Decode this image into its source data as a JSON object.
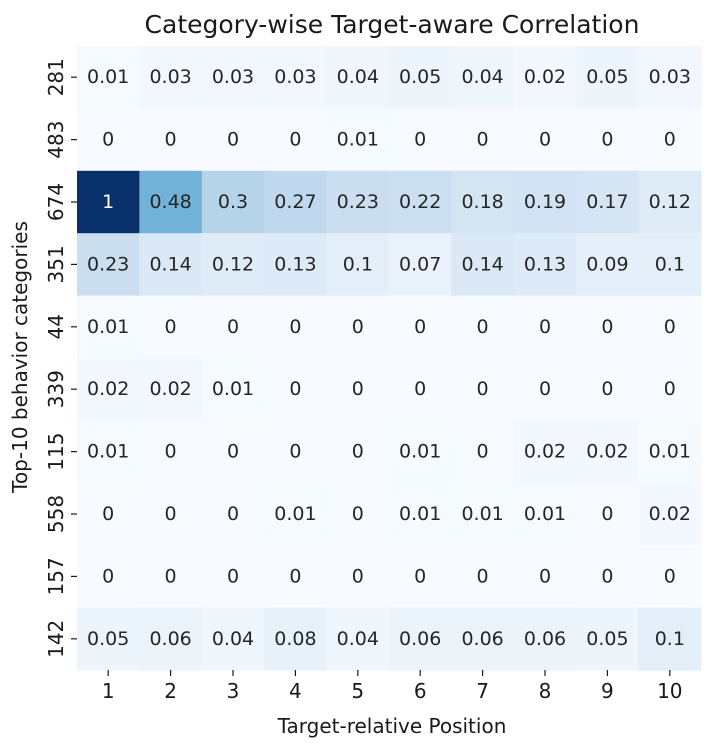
{
  "chart_data": {
    "type": "heatmap",
    "title": "Category-wise Target-aware Correlation",
    "xlabel": "Target-relative Position",
    "ylabel": "Top-10 behavior categories",
    "x_categories": [
      "1",
      "2",
      "3",
      "4",
      "5",
      "6",
      "7",
      "8",
      "9",
      "10"
    ],
    "y_categories": [
      "281",
      "483",
      "674",
      "351",
      "44",
      "339",
      "115",
      "558",
      "157",
      "142"
    ],
    "values": [
      [
        0.01,
        0.03,
        0.03,
        0.03,
        0.04,
        0.05,
        0.04,
        0.02,
        0.05,
        0.03
      ],
      [
        0,
        0,
        0,
        0,
        0.01,
        0,
        0,
        0,
        0,
        0
      ],
      [
        1,
        0.48,
        0.3,
        0.27,
        0.23,
        0.22,
        0.18,
        0.19,
        0.17,
        0.12
      ],
      [
        0.23,
        0.14,
        0.12,
        0.13,
        0.1,
        0.07,
        0.14,
        0.13,
        0.09,
        0.1
      ],
      [
        0.01,
        0,
        0,
        0,
        0,
        0,
        0,
        0,
        0,
        0
      ],
      [
        0.02,
        0.02,
        0.01,
        0,
        0,
        0,
        0,
        0,
        0,
        0
      ],
      [
        0.01,
        0,
        0,
        0,
        0,
        0.01,
        0,
        0.02,
        0.02,
        0.01
      ],
      [
        0,
        0,
        0,
        0.01,
        0,
        0.01,
        0.01,
        0.01,
        0,
        0.02
      ],
      [
        0,
        0,
        0,
        0,
        0,
        0,
        0,
        0,
        0,
        0
      ],
      [
        0.05,
        0.06,
        0.04,
        0.08,
        0.04,
        0.06,
        0.06,
        0.06,
        0.05,
        0.1
      ]
    ],
    "value_range": [
      0,
      1
    ],
    "colormap": "Blues",
    "grid": false,
    "colorbar": false
  },
  "colors": {
    "text_dark": "#262626",
    "text_light": "#ffffff",
    "axis": "#1a1a1a"
  }
}
